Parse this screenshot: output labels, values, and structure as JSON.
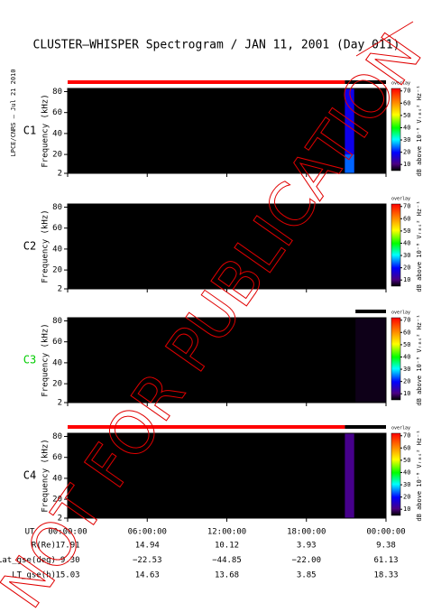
{
  "title": "CLUSTER–WHISPER Spectrogram / JAN 11, 2001 (Day 011)",
  "credit": "LPCE/CNRS – Jul 21 2010",
  "watermark": "NOT FOR PUBLICATION",
  "chart_data": [
    {
      "type": "heatmap",
      "label": "C1",
      "label_color": "#000000",
      "y_label": "Frequency (kHz)",
      "xlim": [
        0,
        24
      ],
      "ylim": [
        2,
        83
      ],
      "yticks": [
        2,
        20,
        40,
        60,
        80
      ],
      "zlim": [
        5,
        72
      ],
      "zticks": [
        10,
        20,
        30,
        40,
        50,
        60,
        70
      ],
      "z_label": "dB above 10⁻⁸ Vᵣₘₛ² Hz⁻¹",
      "z_note": "overlay",
      "background": "#000000",
      "coverage": [
        {
          "start": 0,
          "end": 20.9,
          "color": "#ff0000"
        },
        {
          "start": 20.9,
          "end": 24,
          "color": "#000000"
        }
      ],
      "regions": [
        {
          "x": [
            20.9,
            21.6
          ],
          "y": [
            2,
            83
          ],
          "value": 18
        },
        {
          "x": [
            20.9,
            21.6
          ],
          "y": [
            2,
            20
          ],
          "value": 24
        }
      ]
    },
    {
      "type": "heatmap",
      "label": "C2",
      "label_color": "#000000",
      "y_label": "Frequency (kHz)",
      "xlim": [
        0,
        24
      ],
      "ylim": [
        2,
        83
      ],
      "yticks": [
        2,
        20,
        40,
        60,
        80
      ],
      "zlim": [
        5,
        72
      ],
      "zticks": [
        10,
        20,
        30,
        40,
        50,
        60,
        70
      ],
      "z_label": "dB above 10⁻⁸ Vᵣₘₛ² Hz⁻¹",
      "z_note": "overlay",
      "background": "#000000",
      "coverage": [],
      "regions": []
    },
    {
      "type": "heatmap",
      "label": "C3",
      "label_color": "#00cc00",
      "y_label": "Frequency (kHz)",
      "xlim": [
        0,
        24
      ],
      "ylim": [
        2,
        83
      ],
      "yticks": [
        2,
        20,
        40,
        60,
        80
      ],
      "zlim": [
        5,
        72
      ],
      "zticks": [
        10,
        20,
        30,
        40,
        50,
        60,
        70
      ],
      "z_label": "dB above 10⁻⁸ Vᵣₘₛ² Hz⁻¹",
      "z_note": "overlay",
      "background": "#000000",
      "coverage": [
        {
          "start": 21.7,
          "end": 24,
          "color": "#000000"
        }
      ],
      "regions": [
        {
          "x": [
            21.7,
            24
          ],
          "y": [
            2,
            83
          ],
          "value": 6
        }
      ]
    },
    {
      "type": "heatmap",
      "label": "C4",
      "label_color": "#000000",
      "y_label": "Frequency (kHz)",
      "xlim": [
        0,
        24
      ],
      "ylim": [
        2,
        83
      ],
      "yticks": [
        2,
        20,
        40,
        60,
        80
      ],
      "zlim": [
        5,
        72
      ],
      "zticks": [
        10,
        20,
        30,
        40,
        50,
        60,
        70
      ],
      "z_label": "dB above 10⁻⁸ Vᵣₘₛ² Hz⁻¹",
      "z_note": "overlay",
      "background": "#000000",
      "coverage": [
        {
          "start": 0,
          "end": 20.9,
          "color": "#ff0000"
        },
        {
          "start": 20.9,
          "end": 24,
          "color": "#000000"
        }
      ],
      "regions": [
        {
          "x": [
            20.9,
            21.6
          ],
          "y": [
            2,
            83
          ],
          "value": 11
        }
      ]
    }
  ],
  "time_axis": {
    "label": "UT",
    "ticks": [
      {
        "value": 0,
        "label": "00:00:00"
      },
      {
        "value": 6,
        "label": "06:00:00"
      },
      {
        "value": 12,
        "label": "12:00:00"
      },
      {
        "value": 18,
        "label": "18:00:00"
      },
      {
        "value": 24,
        "label": "00:00:00"
      }
    ]
  },
  "ephemeris": [
    {
      "label": "R(Re)",
      "values": [
        "17.91",
        "14.94",
        "10.12",
        "3.93",
        "9.38"
      ]
    },
    {
      "label": "Lat_gse(deg)",
      "values": [
        "−9.30",
        "−22.53",
        "−44.85",
        "−22.00",
        "61.13"
      ]
    },
    {
      "label": "LT_gse(h)",
      "values": [
        "15.03",
        "14.63",
        "13.68",
        "3.85",
        "18.33"
      ]
    }
  ]
}
